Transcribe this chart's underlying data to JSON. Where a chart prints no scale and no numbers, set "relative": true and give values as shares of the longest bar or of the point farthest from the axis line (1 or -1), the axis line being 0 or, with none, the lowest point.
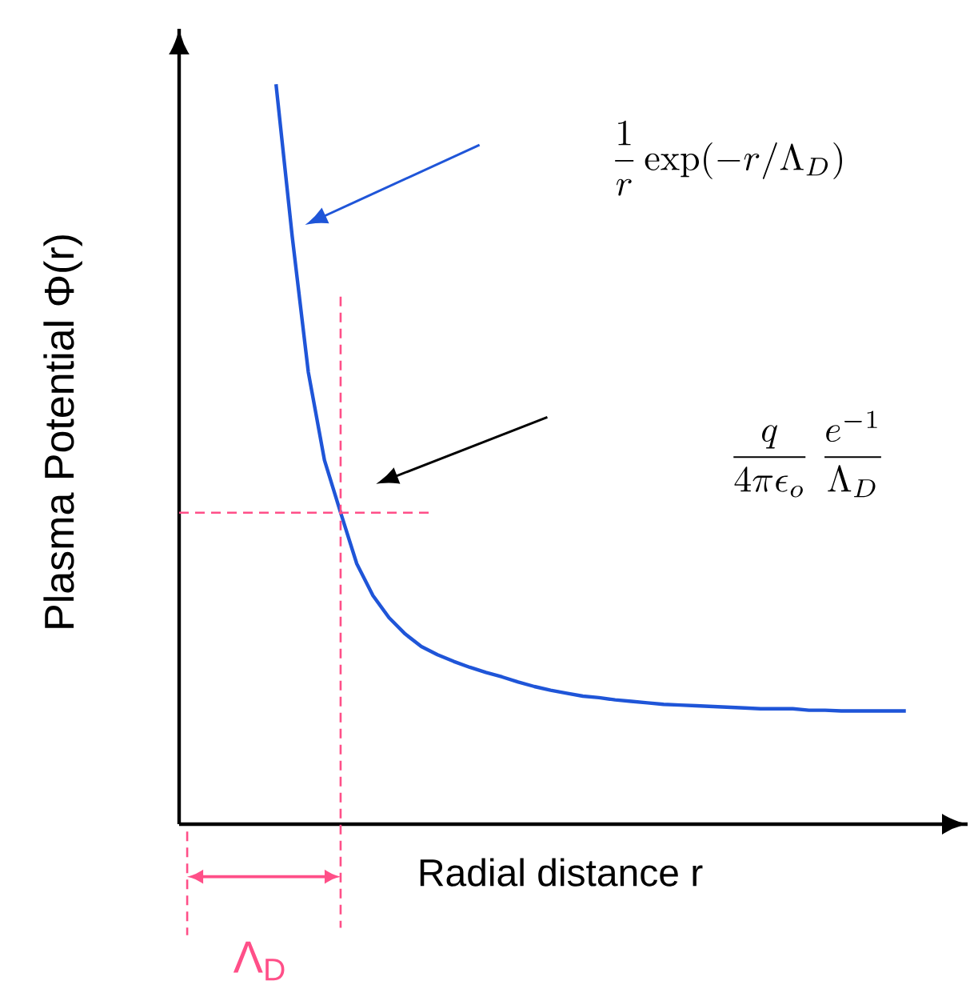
{
  "chart_data": {
    "type": "line",
    "relative": true,
    "xlabel": "Radial distance r",
    "ylabel": "Plasma Potential Φ(r)",
    "categories": [
      null,
      null,
      null,
      null,
      null,
      null,
      null,
      null,
      null,
      null,
      null,
      null,
      null,
      null,
      null,
      null,
      null,
      null,
      null,
      null,
      null,
      null,
      null,
      null,
      null,
      null,
      null,
      null,
      null,
      null,
      null,
      null,
      null,
      null,
      null,
      null,
      null,
      null,
      null,
      null,
      null,
      null,
      null,
      null,
      null,
      null
    ],
    "series": [
      {
        "color": "#1f55d8",
        "values": [
          null,
          null,
          null,
          null,
          null,
          null,
          1.0,
          0.795,
          0.611,
          0.492,
          0.421,
          0.352,
          0.309,
          0.279,
          0.257,
          0.24,
          0.229,
          0.22,
          0.212,
          0.205,
          0.199,
          0.192,
          0.186,
          0.181,
          0.177,
          0.173,
          0.171,
          0.168,
          0.166,
          0.164,
          0.162,
          0.161,
          0.16,
          0.159,
          0.158,
          0.157,
          0.156,
          0.156,
          0.156,
          0.154,
          0.154,
          0.153,
          0.153,
          0.153,
          0.153,
          0.153
        ]
      }
    ],
    "ref_lines": [
      {
        "axis": "y",
        "value": 0.421,
        "color": "#ff4f88",
        "line_style": "dashed"
      }
    ],
    "annotations": [
      "\\frac{1}{r}\\exp(-r/\\Lambda_D)",
      "\\frac{q}{4\\pi\\epsilon_o}\\;\\frac{e^{-1}}{\\Lambda_D}",
      "Λ$_{D}$"
    ]
  }
}
